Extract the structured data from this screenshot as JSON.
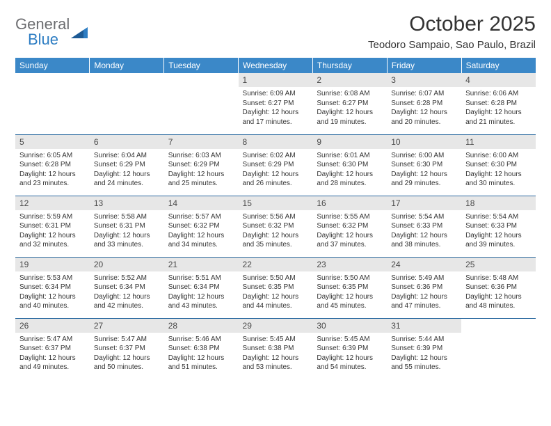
{
  "logo": {
    "text1": "General",
    "text2": "Blue"
  },
  "title": "October 2025",
  "location": "Teodoro Sampaio, Sao Paulo, Brazil",
  "colors": {
    "header_bg": "#3b88c8",
    "header_fg": "#ffffff",
    "rule": "#2b6aa0",
    "daynum_bg": "#e7e7e7",
    "logo_gray": "#6d6e71",
    "logo_blue": "#2d7dc3"
  },
  "day_headers": [
    "Sunday",
    "Monday",
    "Tuesday",
    "Wednesday",
    "Thursday",
    "Friday",
    "Saturday"
  ],
  "weeks": [
    [
      null,
      null,
      null,
      {
        "n": "1",
        "sr": "6:09 AM",
        "ss": "6:27 PM",
        "dl1": "12 hours",
        "dl2": "and 17 minutes."
      },
      {
        "n": "2",
        "sr": "6:08 AM",
        "ss": "6:27 PM",
        "dl1": "12 hours",
        "dl2": "and 19 minutes."
      },
      {
        "n": "3",
        "sr": "6:07 AM",
        "ss": "6:28 PM",
        "dl1": "12 hours",
        "dl2": "and 20 minutes."
      },
      {
        "n": "4",
        "sr": "6:06 AM",
        "ss": "6:28 PM",
        "dl1": "12 hours",
        "dl2": "and 21 minutes."
      }
    ],
    [
      {
        "n": "5",
        "sr": "6:05 AM",
        "ss": "6:28 PM",
        "dl1": "12 hours",
        "dl2": "and 23 minutes."
      },
      {
        "n": "6",
        "sr": "6:04 AM",
        "ss": "6:29 PM",
        "dl1": "12 hours",
        "dl2": "and 24 minutes."
      },
      {
        "n": "7",
        "sr": "6:03 AM",
        "ss": "6:29 PM",
        "dl1": "12 hours",
        "dl2": "and 25 minutes."
      },
      {
        "n": "8",
        "sr": "6:02 AM",
        "ss": "6:29 PM",
        "dl1": "12 hours",
        "dl2": "and 26 minutes."
      },
      {
        "n": "9",
        "sr": "6:01 AM",
        "ss": "6:30 PM",
        "dl1": "12 hours",
        "dl2": "and 28 minutes."
      },
      {
        "n": "10",
        "sr": "6:00 AM",
        "ss": "6:30 PM",
        "dl1": "12 hours",
        "dl2": "and 29 minutes."
      },
      {
        "n": "11",
        "sr": "6:00 AM",
        "ss": "6:30 PM",
        "dl1": "12 hours",
        "dl2": "and 30 minutes."
      }
    ],
    [
      {
        "n": "12",
        "sr": "5:59 AM",
        "ss": "6:31 PM",
        "dl1": "12 hours",
        "dl2": "and 32 minutes."
      },
      {
        "n": "13",
        "sr": "5:58 AM",
        "ss": "6:31 PM",
        "dl1": "12 hours",
        "dl2": "and 33 minutes."
      },
      {
        "n": "14",
        "sr": "5:57 AM",
        "ss": "6:32 PM",
        "dl1": "12 hours",
        "dl2": "and 34 minutes."
      },
      {
        "n": "15",
        "sr": "5:56 AM",
        "ss": "6:32 PM",
        "dl1": "12 hours",
        "dl2": "and 35 minutes."
      },
      {
        "n": "16",
        "sr": "5:55 AM",
        "ss": "6:32 PM",
        "dl1": "12 hours",
        "dl2": "and 37 minutes."
      },
      {
        "n": "17",
        "sr": "5:54 AM",
        "ss": "6:33 PM",
        "dl1": "12 hours",
        "dl2": "and 38 minutes."
      },
      {
        "n": "18",
        "sr": "5:54 AM",
        "ss": "6:33 PM",
        "dl1": "12 hours",
        "dl2": "and 39 minutes."
      }
    ],
    [
      {
        "n": "19",
        "sr": "5:53 AM",
        "ss": "6:34 PM",
        "dl1": "12 hours",
        "dl2": "and 40 minutes."
      },
      {
        "n": "20",
        "sr": "5:52 AM",
        "ss": "6:34 PM",
        "dl1": "12 hours",
        "dl2": "and 42 minutes."
      },
      {
        "n": "21",
        "sr": "5:51 AM",
        "ss": "6:34 PM",
        "dl1": "12 hours",
        "dl2": "and 43 minutes."
      },
      {
        "n": "22",
        "sr": "5:50 AM",
        "ss": "6:35 PM",
        "dl1": "12 hours",
        "dl2": "and 44 minutes."
      },
      {
        "n": "23",
        "sr": "5:50 AM",
        "ss": "6:35 PM",
        "dl1": "12 hours",
        "dl2": "and 45 minutes."
      },
      {
        "n": "24",
        "sr": "5:49 AM",
        "ss": "6:36 PM",
        "dl1": "12 hours",
        "dl2": "and 47 minutes."
      },
      {
        "n": "25",
        "sr": "5:48 AM",
        "ss": "6:36 PM",
        "dl1": "12 hours",
        "dl2": "and 48 minutes."
      }
    ],
    [
      {
        "n": "26",
        "sr": "5:47 AM",
        "ss": "6:37 PM",
        "dl1": "12 hours",
        "dl2": "and 49 minutes."
      },
      {
        "n": "27",
        "sr": "5:47 AM",
        "ss": "6:37 PM",
        "dl1": "12 hours",
        "dl2": "and 50 minutes."
      },
      {
        "n": "28",
        "sr": "5:46 AM",
        "ss": "6:38 PM",
        "dl1": "12 hours",
        "dl2": "and 51 minutes."
      },
      {
        "n": "29",
        "sr": "5:45 AM",
        "ss": "6:38 PM",
        "dl1": "12 hours",
        "dl2": "and 53 minutes."
      },
      {
        "n": "30",
        "sr": "5:45 AM",
        "ss": "6:39 PM",
        "dl1": "12 hours",
        "dl2": "and 54 minutes."
      },
      {
        "n": "31",
        "sr": "5:44 AM",
        "ss": "6:39 PM",
        "dl1": "12 hours",
        "dl2": "and 55 minutes."
      },
      null
    ]
  ],
  "labels": {
    "sunrise": "Sunrise: ",
    "sunset": "Sunset: ",
    "daylight": "Daylight: "
  }
}
